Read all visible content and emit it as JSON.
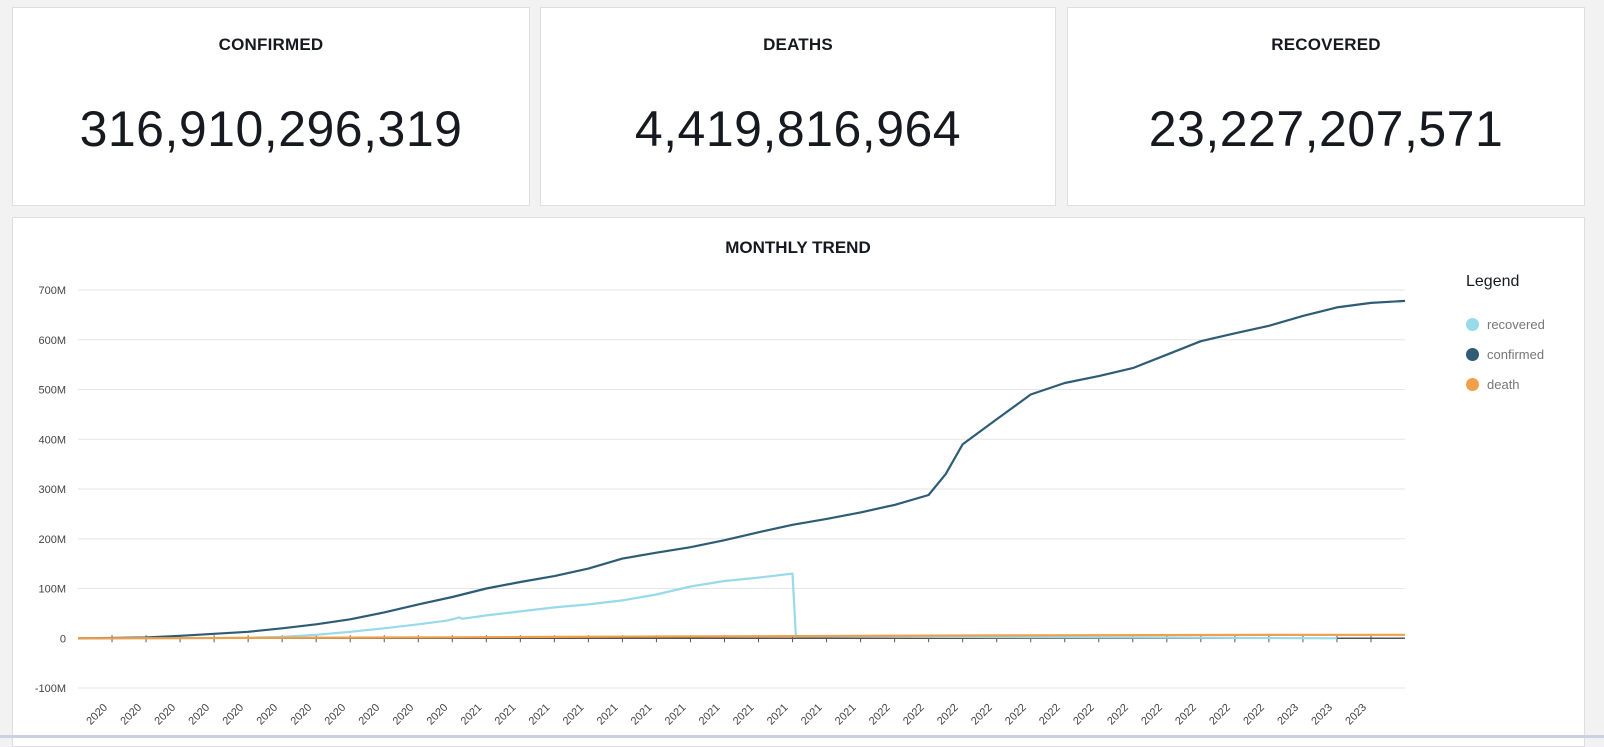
{
  "kpis": {
    "confirmed": {
      "title": "CONFIRMED",
      "value": "316,910,296,319"
    },
    "deaths": {
      "title": "DEATHS",
      "value": "4,419,816,964"
    },
    "recovered": {
      "title": "RECOVERED",
      "value": "23,227,207,571"
    }
  },
  "trend": {
    "title": "MONTHLY TREND",
    "legend_title": "Legend"
  },
  "chart_data": {
    "type": "line",
    "title": "MONTHLY TREND",
    "xlabel": "",
    "ylabel": "",
    "ylim": [
      -100000000,
      700000000
    ],
    "yticks": [
      {
        "value": 700000000,
        "label": "700M"
      },
      {
        "value": 600000000,
        "label": "600M"
      },
      {
        "value": 500000000,
        "label": "500M"
      },
      {
        "value": 400000000,
        "label": "400M"
      },
      {
        "value": 300000000,
        "label": "300M"
      },
      {
        "value": 200000000,
        "label": "200M"
      },
      {
        "value": 100000000,
        "label": "100M"
      },
      {
        "value": 0,
        "label": "0"
      },
      {
        "value": -100000000,
        "label": "-100M"
      }
    ],
    "xtick_labels": [
      "2020",
      "2020",
      "2020",
      "2020",
      "2020",
      "2020",
      "2020",
      "2020",
      "2020",
      "2020",
      "2020",
      "2021",
      "2021",
      "2021",
      "2021",
      "2021",
      "2021",
      "2021",
      "2021",
      "2021",
      "2021",
      "2021",
      "2021",
      "2022",
      "2022",
      "2022",
      "2022",
      "2022",
      "2022",
      "2022",
      "2022",
      "2022",
      "2022",
      "2022",
      "2022",
      "2023",
      "2023",
      "2023"
    ],
    "grid": true,
    "legend_position": "right",
    "series": [
      {
        "name": "recovered",
        "color": "#98d9ea",
        "points": [
          [
            0,
            0
          ],
          [
            5,
            1000000
          ],
          [
            6,
            3000000
          ],
          [
            7,
            7000000
          ],
          [
            8,
            13000000
          ],
          [
            9,
            20000000
          ],
          [
            10,
            28000000
          ],
          [
            10.8,
            35000000
          ],
          [
            11,
            38000000
          ],
          [
            11.2,
            42000000
          ],
          [
            11.3,
            39000000
          ],
          [
            12,
            46000000
          ],
          [
            13,
            54000000
          ],
          [
            14,
            62000000
          ],
          [
            15,
            68000000
          ],
          [
            16,
            76000000
          ],
          [
            17,
            88000000
          ],
          [
            18,
            104000000
          ],
          [
            19,
            115000000
          ],
          [
            20,
            122000000
          ],
          [
            21,
            130000000
          ],
          [
            21.1,
            4000000
          ],
          [
            37,
            0
          ]
        ]
      },
      {
        "name": "confirmed",
        "color": "#2e5c75",
        "points": [
          [
            0,
            0
          ],
          [
            1,
            500000
          ],
          [
            2,
            1500000
          ],
          [
            3,
            5000000
          ],
          [
            4,
            9000000
          ],
          [
            5,
            13000000
          ],
          [
            6,
            20000000
          ],
          [
            7,
            28000000
          ],
          [
            8,
            38000000
          ],
          [
            9,
            52000000
          ],
          [
            10,
            68000000
          ],
          [
            11,
            83000000
          ],
          [
            12,
            100000000
          ],
          [
            13,
            113000000
          ],
          [
            14,
            125000000
          ],
          [
            15,
            140000000
          ],
          [
            16,
            160000000
          ],
          [
            17,
            172000000
          ],
          [
            18,
            183000000
          ],
          [
            19,
            197000000
          ],
          [
            20,
            213000000
          ],
          [
            21,
            228000000
          ],
          [
            22,
            240000000
          ],
          [
            23,
            253000000
          ],
          [
            24,
            268000000
          ],
          [
            25,
            288000000
          ],
          [
            25.5,
            330000000
          ],
          [
            26,
            390000000
          ],
          [
            27,
            440000000
          ],
          [
            28,
            490000000
          ],
          [
            29,
            513000000
          ],
          [
            30,
            527000000
          ],
          [
            31,
            543000000
          ],
          [
            32,
            570000000
          ],
          [
            33,
            597000000
          ],
          [
            34,
            613000000
          ],
          [
            35,
            628000000
          ],
          [
            36,
            648000000
          ],
          [
            37,
            665000000
          ],
          [
            38,
            674000000
          ],
          [
            39,
            678000000
          ]
        ]
      },
      {
        "name": "death",
        "color": "#f0a04b",
        "points": [
          [
            0,
            0
          ],
          [
            3,
            200000
          ],
          [
            5,
            700000
          ],
          [
            8,
            1400000
          ],
          [
            11,
            2000000
          ],
          [
            14,
            2800000
          ],
          [
            17,
            3500000
          ],
          [
            20,
            4200000
          ],
          [
            23,
            5000000
          ],
          [
            26,
            5600000
          ],
          [
            30,
            6200000
          ],
          [
            35,
            6700000
          ],
          [
            39,
            6900000
          ]
        ]
      }
    ]
  }
}
